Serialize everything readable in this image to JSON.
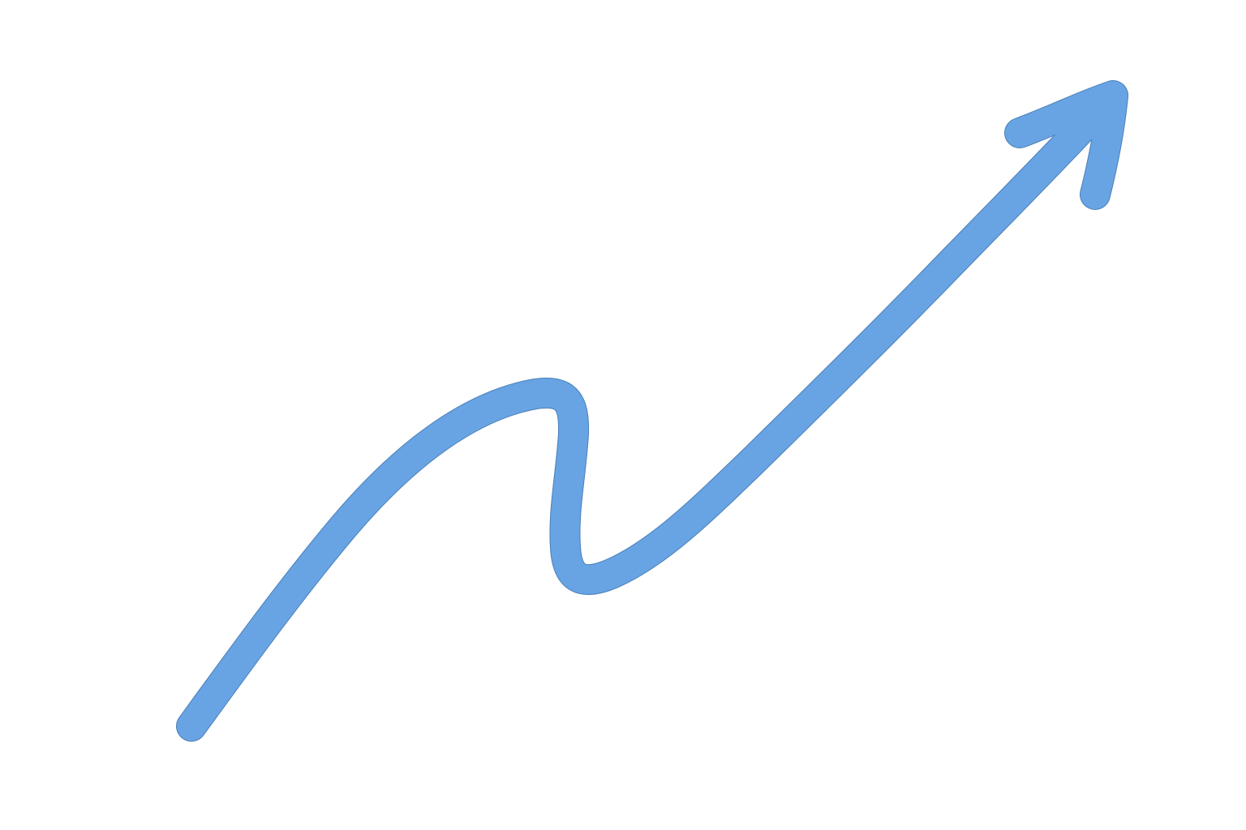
{
  "colors": {
    "background": "#ffffff",
    "arrow_stroke": "#68a4e3",
    "arrow_outline": "#4b7fb8"
  },
  "arrow": {
    "icon": "squiggly-trend-arrow-icon",
    "direction": "up-right"
  }
}
